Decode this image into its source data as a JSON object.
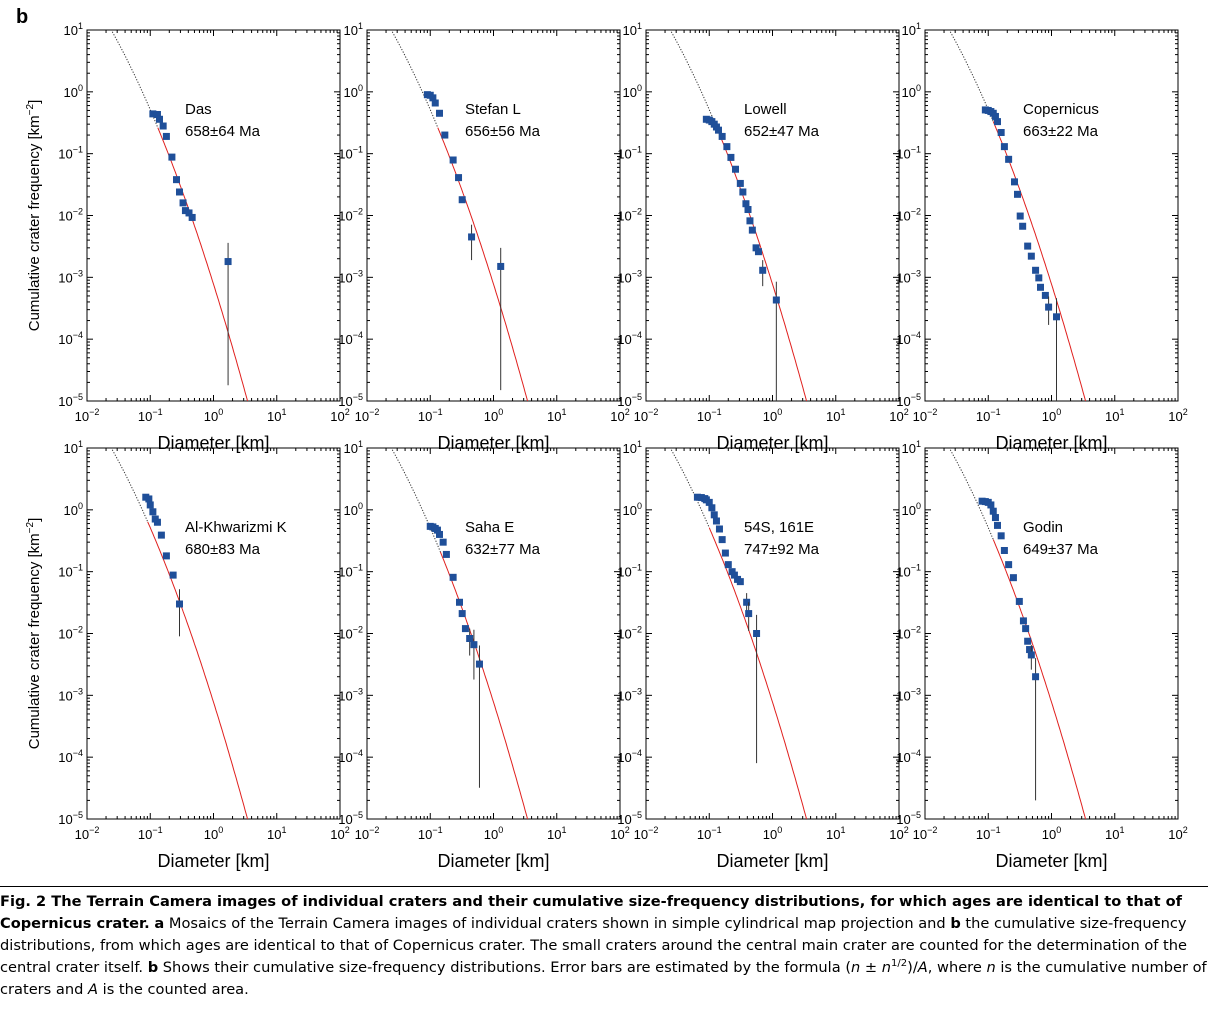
{
  "figure": {
    "panel_letter": "b",
    "x_axis_label": "Diameter [km]",
    "y_axis_label": "Cumulative crater frequency [km",
    "y_axis_label_sup": "−2",
    "y_axis_label_end": "]",
    "x_tick_labels": [
      "10",
      "10",
      "10",
      "10",
      "10"
    ],
    "x_tick_sups": [
      "−2",
      "−1",
      "0",
      "1",
      "2"
    ],
    "y_tick_labels": [
      "10",
      "10",
      "10",
      "10",
      "10",
      "10",
      "10"
    ],
    "y_tick_sups": [
      "1",
      "0",
      "−1",
      "−2",
      "−3",
      "−4",
      "−5"
    ],
    "colors": {
      "points": "#1f4f99",
      "fit": "#e0201e",
      "extrapolation": "#333333",
      "errorbar": "#333333"
    }
  },
  "chart_data": [
    {
      "type": "scatter",
      "name": "Das",
      "label": "Das",
      "age": "658±64 Ma",
      "xlim": [
        0.01,
        100
      ],
      "ylim": [
        1e-05,
        10
      ],
      "xscale": "log",
      "yscale": "log",
      "fit_min_d": 0.13,
      "fit_anchor_d": 0.3,
      "fit_anchor_n": 0.03,
      "points": [
        {
          "d": 0.11,
          "n": 0.44
        },
        {
          "d": 0.13,
          "n": 0.43
        },
        {
          "d": 0.14,
          "n": 0.36
        },
        {
          "d": 0.16,
          "n": 0.28
        },
        {
          "d": 0.18,
          "n": 0.19
        },
        {
          "d": 0.22,
          "n": 0.088
        },
        {
          "d": 0.26,
          "n": 0.038
        },
        {
          "d": 0.29,
          "n": 0.024
        },
        {
          "d": 0.33,
          "n": 0.016
        },
        {
          "d": 0.36,
          "n": 0.012
        },
        {
          "d": 0.41,
          "n": 0.011
        },
        {
          "d": 0.46,
          "n": 0.0093
        },
        {
          "d": 1.7,
          "n": 0.0018,
          "lo": 1.8e-05,
          "hi": 0.0036
        }
      ]
    },
    {
      "type": "scatter",
      "name": "Stefan L",
      "label": "Stefan L",
      "age": "656±56 Ma",
      "xlim": [
        0.01,
        100
      ],
      "ylim": [
        1e-05,
        10
      ],
      "xscale": "log",
      "yscale": "log",
      "fit_min_d": 0.13,
      "fit_anchor_d": 0.3,
      "fit_anchor_n": 0.03,
      "points": [
        {
          "d": 0.09,
          "n": 0.9
        },
        {
          "d": 0.1,
          "n": 0.88
        },
        {
          "d": 0.11,
          "n": 0.8
        },
        {
          "d": 0.12,
          "n": 0.66
        },
        {
          "d": 0.14,
          "n": 0.45
        },
        {
          "d": 0.17,
          "n": 0.2
        },
        {
          "d": 0.23,
          "n": 0.079
        },
        {
          "d": 0.28,
          "n": 0.041
        },
        {
          "d": 0.32,
          "n": 0.018
        },
        {
          "d": 0.45,
          "n": 0.0045,
          "lo": 0.0019,
          "hi": 0.0071
        },
        {
          "d": 1.3,
          "n": 0.0015,
          "lo": 1.5e-05,
          "hi": 0.003
        }
      ]
    },
    {
      "type": "scatter",
      "name": "Lowell",
      "label": "Lowell",
      "age": "652±47 Ma",
      "xlim": [
        0.01,
        100
      ],
      "ylim": [
        1e-05,
        10
      ],
      "xscale": "log",
      "yscale": "log",
      "fit_min_d": 0.12,
      "fit_anchor_d": 0.3,
      "fit_anchor_n": 0.03,
      "points": [
        {
          "d": 0.09,
          "n": 0.36
        },
        {
          "d": 0.1,
          "n": 0.35
        },
        {
          "d": 0.11,
          "n": 0.33
        },
        {
          "d": 0.12,
          "n": 0.3
        },
        {
          "d": 0.13,
          "n": 0.27
        },
        {
          "d": 0.14,
          "n": 0.24
        },
        {
          "d": 0.16,
          "n": 0.19
        },
        {
          "d": 0.19,
          "n": 0.13
        },
        {
          "d": 0.22,
          "n": 0.087
        },
        {
          "d": 0.26,
          "n": 0.056
        },
        {
          "d": 0.31,
          "n": 0.033
        },
        {
          "d": 0.34,
          "n": 0.024
        },
        {
          "d": 0.38,
          "n": 0.0155
        },
        {
          "d": 0.41,
          "n": 0.0125
        },
        {
          "d": 0.44,
          "n": 0.0082
        },
        {
          "d": 0.48,
          "n": 0.0058
        },
        {
          "d": 0.55,
          "n": 0.003
        },
        {
          "d": 0.6,
          "n": 0.0026
        },
        {
          "d": 0.7,
          "n": 0.0013,
          "lo": 0.00072,
          "hi": 0.0019
        },
        {
          "d": 1.15,
          "n": 0.00043,
          "lo": 1e-05,
          "hi": 0.00085
        }
      ]
    },
    {
      "type": "scatter",
      "name": "Copernicus",
      "label": "Copernicus",
      "age": "663±22 Ma",
      "xlim": [
        0.01,
        100
      ],
      "ylim": [
        1e-05,
        10
      ],
      "xscale": "log",
      "yscale": "log",
      "fit_min_d": 0.12,
      "fit_anchor_d": 0.3,
      "fit_anchor_n": 0.03,
      "points": [
        {
          "d": 0.09,
          "n": 0.51
        },
        {
          "d": 0.1,
          "n": 0.5
        },
        {
          "d": 0.11,
          "n": 0.48
        },
        {
          "d": 0.12,
          "n": 0.45
        },
        {
          "d": 0.13,
          "n": 0.4
        },
        {
          "d": 0.14,
          "n": 0.33
        },
        {
          "d": 0.16,
          "n": 0.22
        },
        {
          "d": 0.18,
          "n": 0.13
        },
        {
          "d": 0.21,
          "n": 0.081
        },
        {
          "d": 0.26,
          "n": 0.035
        },
        {
          "d": 0.29,
          "n": 0.022
        },
        {
          "d": 0.32,
          "n": 0.0098
        },
        {
          "d": 0.35,
          "n": 0.0067
        },
        {
          "d": 0.42,
          "n": 0.0032
        },
        {
          "d": 0.48,
          "n": 0.0022
        },
        {
          "d": 0.56,
          "n": 0.0013
        },
        {
          "d": 0.63,
          "n": 0.00098
        },
        {
          "d": 0.67,
          "n": 0.00069
        },
        {
          "d": 0.8,
          "n": 0.00051
        },
        {
          "d": 0.9,
          "n": 0.00033,
          "lo": 0.00017,
          "hi": 0.00049
        },
        {
          "d": 1.2,
          "n": 0.00023,
          "lo": 1e-05,
          "hi": 0.00046
        }
      ]
    },
    {
      "type": "scatter",
      "name": "Al-Khwarizmi K",
      "label": "Al-Khwarizmi K",
      "age": "680±83 Ma",
      "xlim": [
        0.01,
        100
      ],
      "ylim": [
        1e-05,
        10
      ],
      "xscale": "log",
      "yscale": "log",
      "fit_min_d": 0.09,
      "fit_anchor_d": 0.3,
      "fit_anchor_n": 0.03,
      "points": [
        {
          "d": 0.085,
          "n": 1.6
        },
        {
          "d": 0.095,
          "n": 1.5
        },
        {
          "d": 0.1,
          "n": 1.2
        },
        {
          "d": 0.11,
          "n": 0.93
        },
        {
          "d": 0.12,
          "n": 0.71
        },
        {
          "d": 0.13,
          "n": 0.63
        },
        {
          "d": 0.15,
          "n": 0.39
        },
        {
          "d": 0.18,
          "n": 0.18
        },
        {
          "d": 0.23,
          "n": 0.088
        },
        {
          "d": 0.29,
          "n": 0.03,
          "lo": 0.009,
          "hi": 0.052
        }
      ]
    },
    {
      "type": "scatter",
      "name": "Saha E",
      "label": "Saha E",
      "age": "632±77 Ma",
      "xlim": [
        0.01,
        100
      ],
      "ylim": [
        1e-05,
        10
      ],
      "xscale": "log",
      "yscale": "log",
      "fit_min_d": 0.14,
      "fit_anchor_d": 0.3,
      "fit_anchor_n": 0.03,
      "points": [
        {
          "d": 0.1,
          "n": 0.54
        },
        {
          "d": 0.11,
          "n": 0.53
        },
        {
          "d": 0.12,
          "n": 0.5
        },
        {
          "d": 0.13,
          "n": 0.47
        },
        {
          "d": 0.14,
          "n": 0.4
        },
        {
          "d": 0.16,
          "n": 0.3
        },
        {
          "d": 0.18,
          "n": 0.19
        },
        {
          "d": 0.23,
          "n": 0.081
        },
        {
          "d": 0.29,
          "n": 0.032
        },
        {
          "d": 0.32,
          "n": 0.021
        },
        {
          "d": 0.36,
          "n": 0.012
        },
        {
          "d": 0.42,
          "n": 0.0083,
          "lo": 0.0044,
          "hi": 0.012
        },
        {
          "d": 0.49,
          "n": 0.0066,
          "lo": 0.0018,
          "hi": 0.0115
        },
        {
          "d": 0.6,
          "n": 0.0032,
          "lo": 3.2e-05,
          "hi": 0.0064
        }
      ]
    },
    {
      "type": "scatter",
      "name": "54S, 161E",
      "label": "54S, 161E",
      "age": "747±92 Ma",
      "xlim": [
        0.01,
        100
      ],
      "ylim": [
        1e-05,
        10
      ],
      "xscale": "log",
      "yscale": "log",
      "fit_min_d": 0.1,
      "fit_anchor_d": 0.3,
      "fit_anchor_n": 0.03,
      "points": [
        {
          "d": 0.065,
          "n": 1.6
        },
        {
          "d": 0.075,
          "n": 1.58
        },
        {
          "d": 0.085,
          "n": 1.52
        },
        {
          "d": 0.09,
          "n": 1.45
        },
        {
          "d": 0.1,
          "n": 1.32
        },
        {
          "d": 0.11,
          "n": 1.08
        },
        {
          "d": 0.12,
          "n": 0.83
        },
        {
          "d": 0.13,
          "n": 0.66
        },
        {
          "d": 0.145,
          "n": 0.49
        },
        {
          "d": 0.16,
          "n": 0.33
        },
        {
          "d": 0.18,
          "n": 0.2
        },
        {
          "d": 0.2,
          "n": 0.13
        },
        {
          "d": 0.23,
          "n": 0.1
        },
        {
          "d": 0.25,
          "n": 0.088
        },
        {
          "d": 0.28,
          "n": 0.075
        },
        {
          "d": 0.31,
          "n": 0.069
        },
        {
          "d": 0.39,
          "n": 0.032,
          "lo": 0.02,
          "hi": 0.045
        },
        {
          "d": 0.42,
          "n": 0.021,
          "lo": 0.011,
          "hi": 0.032
        },
        {
          "d": 0.56,
          "n": 0.01,
          "lo": 8e-05,
          "hi": 0.02
        }
      ]
    },
    {
      "type": "scatter",
      "name": "Godin",
      "label": "Godin",
      "age": "649±37 Ma",
      "xlim": [
        0.01,
        100
      ],
      "ylim": [
        1e-05,
        10
      ],
      "xscale": "log",
      "yscale": "log",
      "fit_min_d": 0.12,
      "fit_anchor_d": 0.3,
      "fit_anchor_n": 0.03,
      "points": [
        {
          "d": 0.08,
          "n": 1.38
        },
        {
          "d": 0.09,
          "n": 1.36
        },
        {
          "d": 0.1,
          "n": 1.32
        },
        {
          "d": 0.11,
          "n": 1.2
        },
        {
          "d": 0.12,
          "n": 0.95
        },
        {
          "d": 0.13,
          "n": 0.75
        },
        {
          "d": 0.14,
          "n": 0.56
        },
        {
          "d": 0.16,
          "n": 0.38
        },
        {
          "d": 0.18,
          "n": 0.22
        },
        {
          "d": 0.21,
          "n": 0.13
        },
        {
          "d": 0.25,
          "n": 0.08
        },
        {
          "d": 0.31,
          "n": 0.033
        },
        {
          "d": 0.36,
          "n": 0.016
        },
        {
          "d": 0.39,
          "n": 0.012
        },
        {
          "d": 0.42,
          "n": 0.0075
        },
        {
          "d": 0.45,
          "n": 0.0055
        },
        {
          "d": 0.48,
          "n": 0.0045,
          "lo": 0.0026,
          "hi": 0.0065
        },
        {
          "d": 0.56,
          "n": 0.002,
          "lo": 2e-05,
          "hi": 0.004
        }
      ]
    }
  ],
  "caption": {
    "title": "Fig. 2 The Terrain Camera images of individual craters and their cumulative size-frequency distributions, for which ages are identical to that of Copernicus crater.",
    "a_label": "a",
    "a_text": " Mosaics of the Terrain Camera images of individual craters shown in simple cylindrical map projection and ",
    "b_label": "b",
    "b_text": " the cumulative size-frequency distributions, from which ages are identical to that of Copernicus crater. The small craters around the central main crater are counted for the determination of the central crater itself. ",
    "b2_label": "b",
    "b2_text": " Shows their cumulative size-frequency distributions. Error bars are estimated by the formula (",
    "formula_n": "n",
    "formula_pm": " ± ",
    "formula_n2": "n",
    "formula_sup": "1/2",
    "formula_close": ")/",
    "formula_A": "A",
    "where_text": ", where ",
    "n_def_var": "n",
    "n_def_text": " is the cumulative number of craters and ",
    "A_def_var": "A",
    "A_def_text": " is the counted area."
  }
}
